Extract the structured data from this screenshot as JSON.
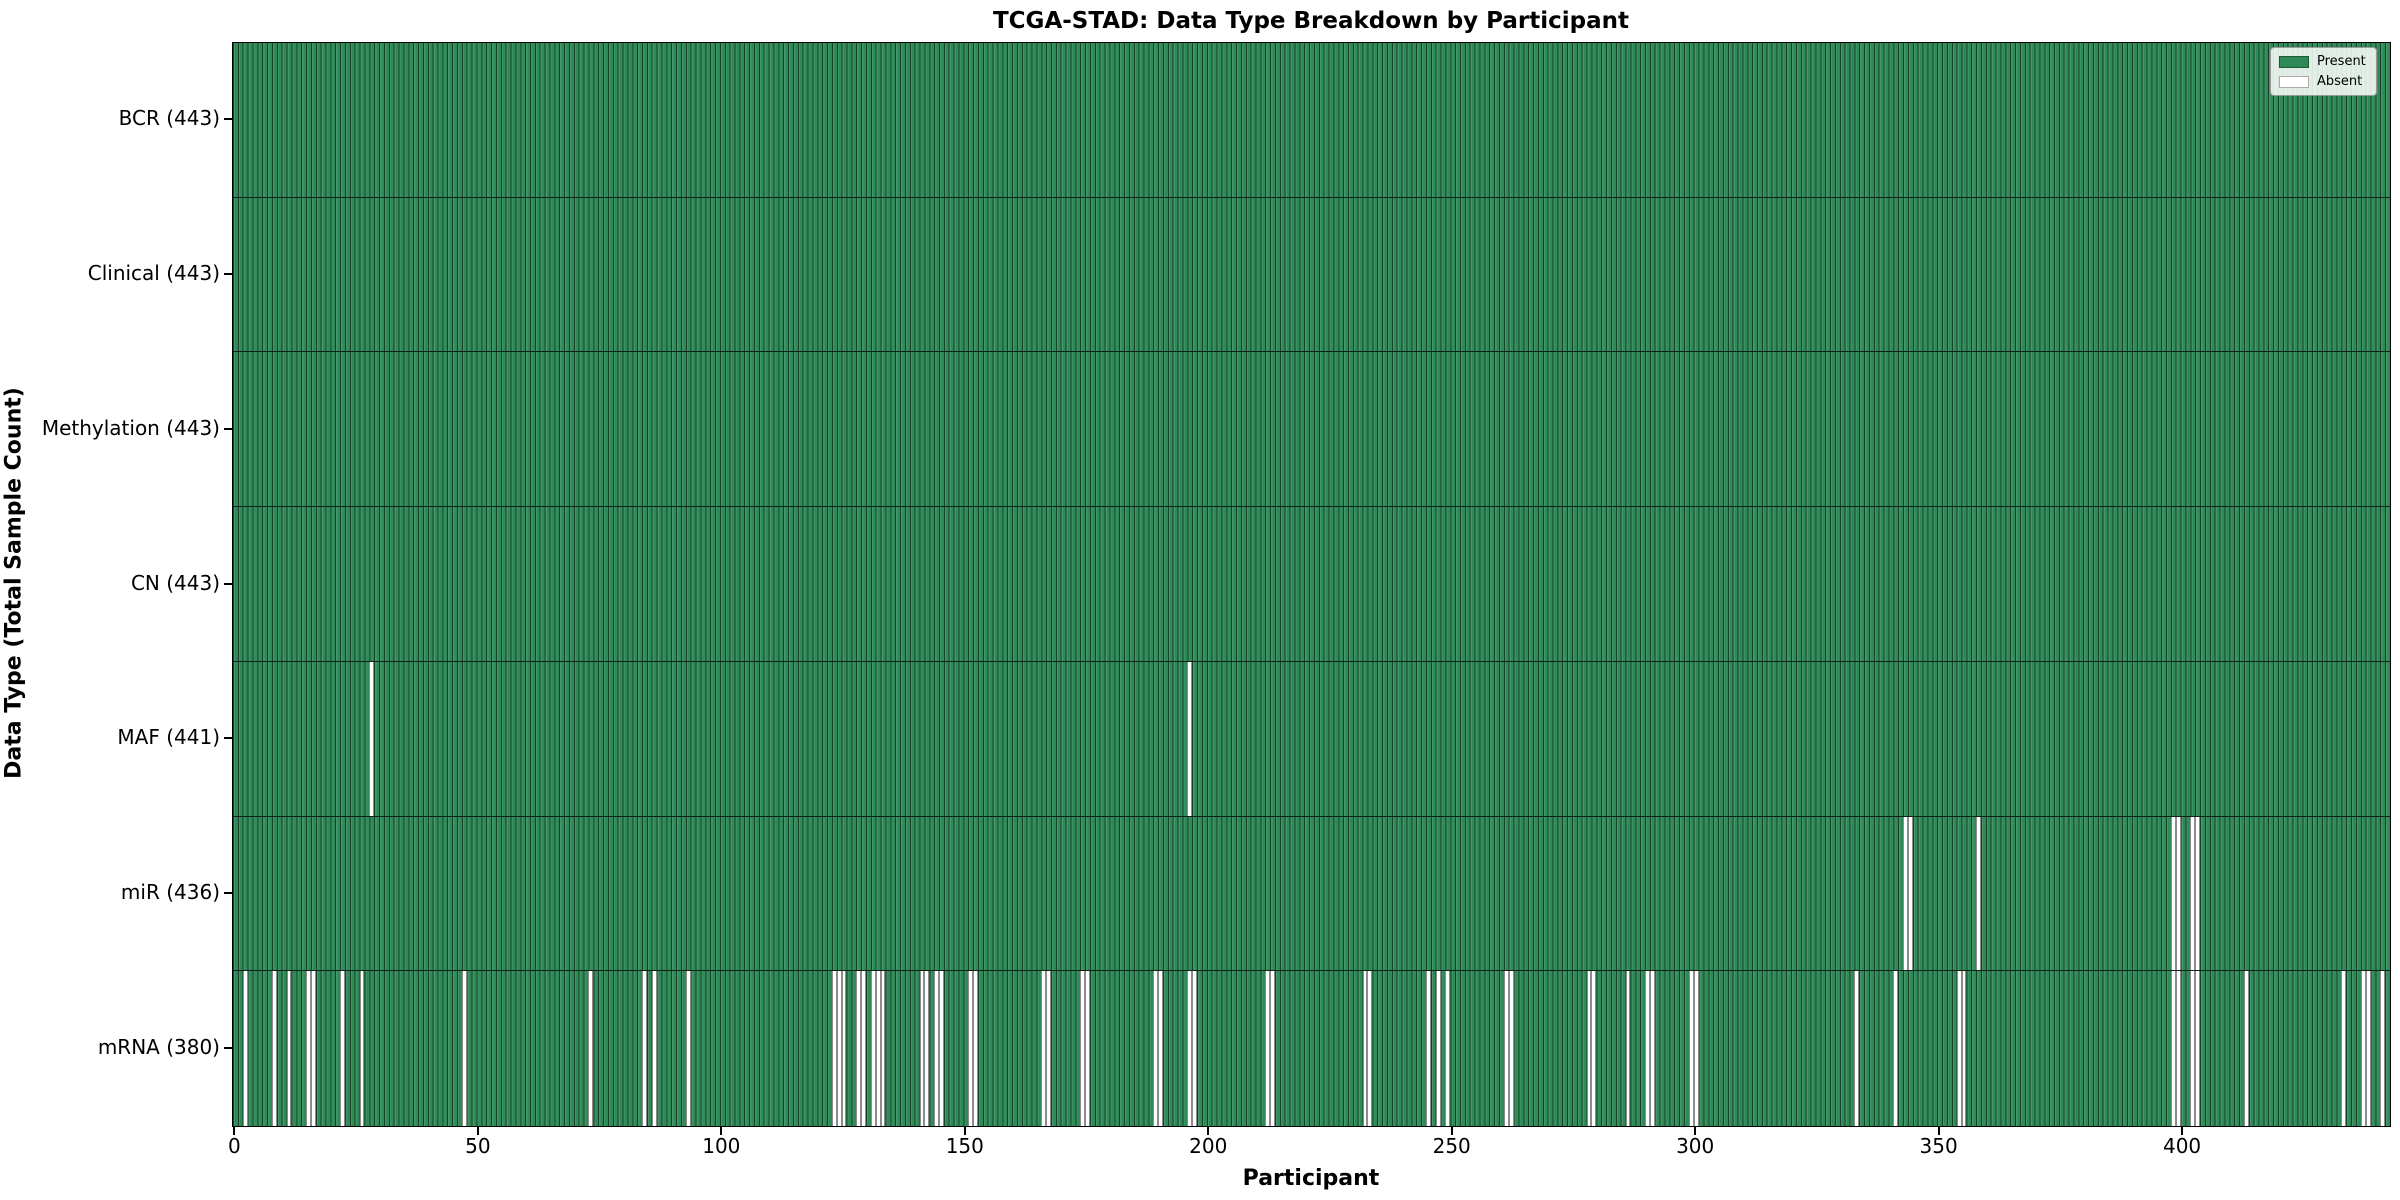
{
  "chart_data": {
    "type": "heatmap",
    "title": "TCGA-STAD: Data Type Breakdown by Participant",
    "xlabel": "Participant",
    "ylabel": "Data Type (Total Sample Count)",
    "n_participants": 443,
    "xlim": [
      -0.5,
      442.5
    ],
    "x_ticks": [
      0,
      50,
      100,
      150,
      200,
      250,
      300,
      350,
      400
    ],
    "grid": false,
    "legend_position": "upper right",
    "legend": [
      {
        "label": "Present",
        "color": "#2e8b57"
      },
      {
        "label": "Absent",
        "color": "#ffffff"
      }
    ],
    "colors": {
      "present": "#2e8b57",
      "absent": "#ffffff",
      "bar_edge": "rgba(0,0,0,0.55)"
    },
    "rows": [
      {
        "name": "BCR",
        "label": "BCR (443)",
        "present_count": 443,
        "absent_participants": []
      },
      {
        "name": "Clinical",
        "label": "Clinical (443)",
        "present_count": 443,
        "absent_participants": []
      },
      {
        "name": "Methylation",
        "label": "Methylation (443)",
        "present_count": 443,
        "absent_participants": []
      },
      {
        "name": "CN",
        "label": "CN (443)",
        "present_count": 443,
        "absent_participants": []
      },
      {
        "name": "MAF",
        "label": "MAF (441)",
        "present_count": 441,
        "absent_participants": [
          28,
          196
        ]
      },
      {
        "name": "miR",
        "label": "miR (436)",
        "present_count": 436,
        "absent_participants": [
          343,
          344,
          358,
          398,
          399,
          402,
          403
        ]
      },
      {
        "name": "mRNA",
        "label": "mRNA (380)",
        "present_count": 380,
        "absent_participants": [
          2,
          8,
          11,
          15,
          16,
          22,
          26,
          47,
          73,
          84,
          86,
          93,
          123,
          124,
          125,
          128,
          129,
          131,
          132,
          133,
          141,
          142,
          144,
          145,
          151,
          152,
          166,
          167,
          174,
          175,
          189,
          190,
          196,
          197,
          212,
          213,
          232,
          233,
          245,
          247,
          249,
          261,
          262,
          278,
          279,
          286,
          290,
          291,
          299,
          300,
          333,
          341,
          354,
          355,
          398,
          399,
          402,
          403,
          413,
          433,
          437,
          438,
          441
        ]
      }
    ]
  }
}
